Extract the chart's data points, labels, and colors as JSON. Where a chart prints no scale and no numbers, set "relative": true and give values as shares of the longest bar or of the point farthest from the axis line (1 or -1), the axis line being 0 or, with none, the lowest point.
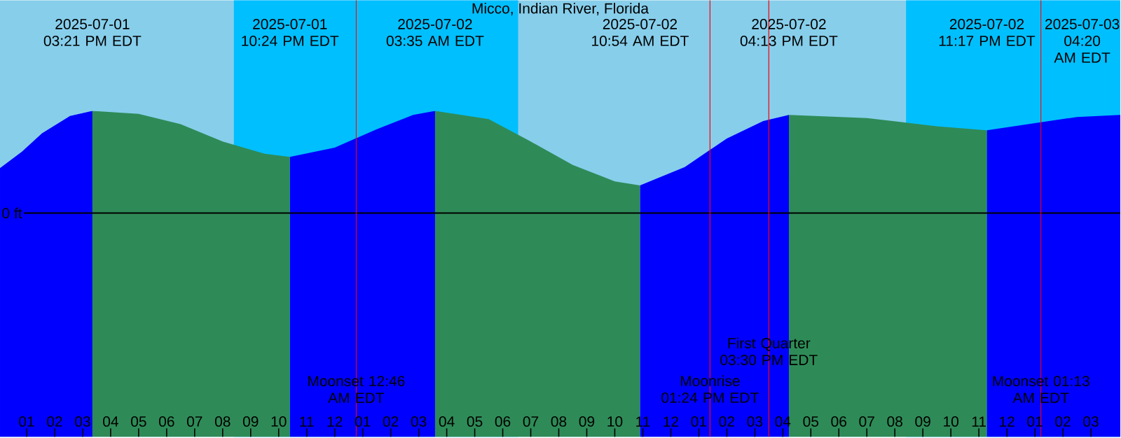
{
  "chart_data": {
    "type": "area",
    "title": "Micco, Indian River, Florida",
    "relative": true,
    "xlim": [
      "2025-07-01T12:03",
      "2025-07-03T04:03"
    ],
    "xticks": [
      {
        "value": "2025-07-01T13:00",
        "label": "01"
      },
      {
        "value": "2025-07-01T14:00",
        "label": "02"
      },
      {
        "value": "2025-07-01T15:00",
        "label": "03"
      },
      {
        "value": "2025-07-01T16:00",
        "label": "04"
      },
      {
        "value": "2025-07-01T17:00",
        "label": "05"
      },
      {
        "value": "2025-07-01T18:00",
        "label": "06"
      },
      {
        "value": "2025-07-01T19:00",
        "label": "07"
      },
      {
        "value": "2025-07-01T20:00",
        "label": "08"
      },
      {
        "value": "2025-07-01T21:00",
        "label": "09"
      },
      {
        "value": "2025-07-01T22:00",
        "label": "10"
      },
      {
        "value": "2025-07-01T23:00",
        "label": "11"
      },
      {
        "value": "2025-07-02T00:00",
        "label": "12"
      },
      {
        "value": "2025-07-02T01:00",
        "label": "01"
      },
      {
        "value": "2025-07-02T02:00",
        "label": "02"
      },
      {
        "value": "2025-07-02T03:00",
        "label": "03"
      },
      {
        "value": "2025-07-02T04:00",
        "label": "04"
      },
      {
        "value": "2025-07-02T05:00",
        "label": "05"
      },
      {
        "value": "2025-07-02T06:00",
        "label": "06"
      },
      {
        "value": "2025-07-02T07:00",
        "label": "07"
      },
      {
        "value": "2025-07-02T08:00",
        "label": "08"
      },
      {
        "value": "2025-07-02T09:00",
        "label": "09"
      },
      {
        "value": "2025-07-02T10:00",
        "label": "10"
      },
      {
        "value": "2025-07-02T11:00",
        "label": "11"
      },
      {
        "value": "2025-07-02T12:00",
        "label": "12"
      },
      {
        "value": "2025-07-02T13:00",
        "label": "01"
      },
      {
        "value": "2025-07-02T14:00",
        "label": "02"
      },
      {
        "value": "2025-07-02T15:00",
        "label": "03"
      },
      {
        "value": "2025-07-02T16:00",
        "label": "04"
      },
      {
        "value": "2025-07-02T17:00",
        "label": "05"
      },
      {
        "value": "2025-07-02T18:00",
        "label": "06"
      },
      {
        "value": "2025-07-02T19:00",
        "label": "07"
      },
      {
        "value": "2025-07-02T20:00",
        "label": "08"
      },
      {
        "value": "2025-07-02T21:00",
        "label": "09"
      },
      {
        "value": "2025-07-02T22:00",
        "label": "10"
      },
      {
        "value": "2025-07-02T23:00",
        "label": "11"
      },
      {
        "value": "2025-07-03T00:00",
        "label": "12"
      },
      {
        "value": "2025-07-03T01:00",
        "label": "01"
      },
      {
        "value": "2025-07-03T02:00",
        "label": "02"
      },
      {
        "value": "2025-07-03T03:00",
        "label": "03"
      }
    ],
    "series": [
      {
        "color": "#0000ff",
        "x": [
          "2025-07-01T12:03",
          "2025-07-01T12:50",
          "2025-07-01T13:33",
          "2025-07-01T14:33",
          "2025-07-01T15:21",
          null,
          "2025-07-01T22:24",
          "2025-07-02T00:00",
          "2025-07-02T01:30",
          "2025-07-02T02:48",
          "2025-07-02T03:35",
          null,
          "2025-07-02T10:54",
          "2025-07-02T12:30",
          "2025-07-02T14:00",
          "2025-07-02T15:18",
          "2025-07-02T16:13",
          null,
          "2025-07-02T23:17",
          "2025-07-03T01:00",
          "2025-07-03T02:30",
          "2025-07-03T04:03"
        ],
        "values": [
          0.44,
          0.6,
          0.78,
          0.95,
          1.0,
          null,
          0.55,
          0.64,
          0.82,
          0.96,
          1.0,
          null,
          0.27,
          0.45,
          0.73,
          0.9,
          0.96,
          null,
          0.81,
          0.88,
          0.94,
          0.96
        ]
      },
      {
        "color": "#2e8b57",
        "x": [
          "2025-07-01T15:21",
          "2025-07-01T17:00",
          "2025-07-01T18:30",
          "2025-07-01T20:00",
          "2025-07-01T21:30",
          "2025-07-01T22:24",
          null,
          "2025-07-02T03:35",
          "2025-07-02T05:30",
          "2025-07-02T07:00",
          "2025-07-02T08:30",
          "2025-07-02T10:00",
          "2025-07-02T10:54",
          null,
          "2025-07-02T16:13",
          "2025-07-02T19:00",
          "2025-07-02T21:30",
          "2025-07-02T23:17"
        ],
        "values": [
          1.0,
          0.97,
          0.87,
          0.7,
          0.58,
          0.55,
          null,
          1.0,
          0.92,
          0.7,
          0.47,
          0.31,
          0.27,
          null,
          0.96,
          0.93,
          0.85,
          0.81
        ]
      }
    ],
    "bands": [
      {
        "axis": "x",
        "from": "2025-07-01T20:24",
        "to": "2025-07-02T06:33",
        "color": "#00bfff"
      },
      {
        "axis": "x",
        "from": "2025-07-02T20:24",
        "to": "2025-07-03T04:03",
        "color": "#00bfff"
      }
    ],
    "ref_lines": [
      {
        "axis": "y",
        "value": 0,
        "label": "0 ft",
        "color": "#000000"
      },
      {
        "axis": "x",
        "value": "2025-07-02T00:46",
        "label": "Moonset 12:46 AM EDT",
        "color": "#ff0000"
      },
      {
        "axis": "x",
        "value": "2025-07-02T13:24",
        "label": "Moonrise 01:24 PM EDT",
        "color": "#ff0000"
      },
      {
        "axis": "x",
        "value": "2025-07-02T15:30",
        "label": "First Quarter 03:30 PM EDT",
        "color": "#ff0000"
      },
      {
        "axis": "x",
        "value": "2025-07-03T01:13",
        "label": "Moonset 01:13 AM EDT",
        "color": "#ff0000"
      }
    ],
    "x2lim": [
      "2025-07-01T12:03",
      "2025-07-03T04:03"
    ],
    "x2ticks": [
      {
        "value": "2025-07-01T15:21",
        "label": "2025-07-01 03:21 PM EDT"
      },
      {
        "value": "2025-07-01T22:24",
        "label": "2025-07-01 10:24 PM EDT"
      },
      {
        "value": "2025-07-02T03:35",
        "label": "2025-07-02 03:35 AM EDT"
      },
      {
        "value": "2025-07-02T10:54",
        "label": "2025-07-02 10:54 AM EDT"
      },
      {
        "value": "2025-07-02T16:13",
        "label": "2025-07-02 04:13 PM EDT"
      },
      {
        "value": "2025-07-02T23:17",
        "label": "2025-07-02 11:17 PM EDT"
      }
    ],
    "annotations": [
      "2025-07-03 04:20 AM EDT"
    ]
  }
}
